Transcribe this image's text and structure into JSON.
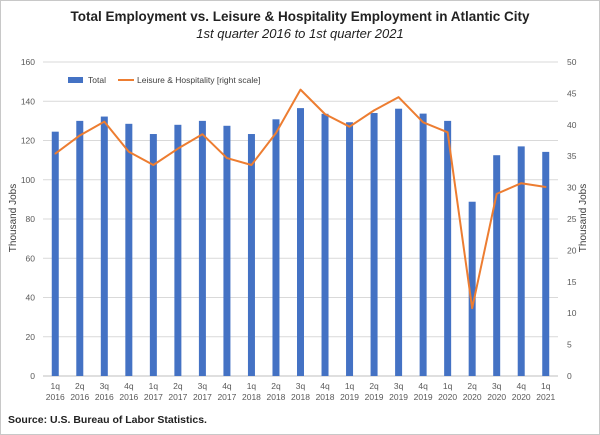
{
  "chart_data": {
    "type": "bar",
    "title": "Total Employment vs. Leisure & Hospitality Employment in Atlantic City",
    "subtitle": "1st quarter 2016 to 1st quarter 2021",
    "ylabel_left": "Thousand Jobs",
    "ylabel_right": "Thousand Jobs",
    "ylim_left": [
      0,
      160
    ],
    "yticks_left": [
      0,
      20,
      40,
      60,
      80,
      100,
      120,
      140,
      160
    ],
    "ylim_right": [
      0,
      50
    ],
    "yticks_right": [
      0,
      5,
      10,
      15,
      20,
      25,
      30,
      35,
      40,
      45,
      50
    ],
    "grid": true,
    "legend_position": "top-left",
    "categories": [
      {
        "q": "1q",
        "y": "2016"
      },
      {
        "q": "2q",
        "y": "2016"
      },
      {
        "q": "3q",
        "y": "2016"
      },
      {
        "q": "4q",
        "y": "2016"
      },
      {
        "q": "1q",
        "y": "2017"
      },
      {
        "q": "2q",
        "y": "2017"
      },
      {
        "q": "3q",
        "y": "2017"
      },
      {
        "q": "4q",
        "y": "2017"
      },
      {
        "q": "1q",
        "y": "2018"
      },
      {
        "q": "2q",
        "y": "2018"
      },
      {
        "q": "3q",
        "y": "2018"
      },
      {
        "q": "4q",
        "y": "2018"
      },
      {
        "q": "1q",
        "y": "2019"
      },
      {
        "q": "2q",
        "y": "2019"
      },
      {
        "q": "3q",
        "y": "2019"
      },
      {
        "q": "4q",
        "y": "2019"
      },
      {
        "q": "1q",
        "y": "2020"
      },
      {
        "q": "2q",
        "y": "2020"
      },
      {
        "q": "3q",
        "y": "2020"
      },
      {
        "q": "4q",
        "y": "2020"
      },
      {
        "q": "1q",
        "y": "2021"
      }
    ],
    "series": [
      {
        "name": "Total",
        "kind": "bar",
        "axis": "left",
        "color": "#4472c4",
        "values": [
          124.5,
          130.0,
          132.2,
          128.5,
          123.3,
          128.0,
          130.0,
          127.5,
          123.3,
          130.8,
          136.5,
          133.6,
          129.3,
          134.0,
          136.2,
          133.7,
          130.0,
          88.8,
          112.5,
          117.0,
          114.2
        ]
      },
      {
        "name": "Leisure & Hospitality [right scale]",
        "kind": "line",
        "axis": "right",
        "color": "#ed7d31",
        "values": [
          35.4,
          38.3,
          40.5,
          35.7,
          33.6,
          36.2,
          38.5,
          34.7,
          33.6,
          38.7,
          45.6,
          41.7,
          39.7,
          42.3,
          44.4,
          40.4,
          38.8,
          10.8,
          29.0,
          30.7,
          30.1
        ]
      }
    ]
  },
  "source": "Source: U.S. Bureau of Labor Statistics."
}
